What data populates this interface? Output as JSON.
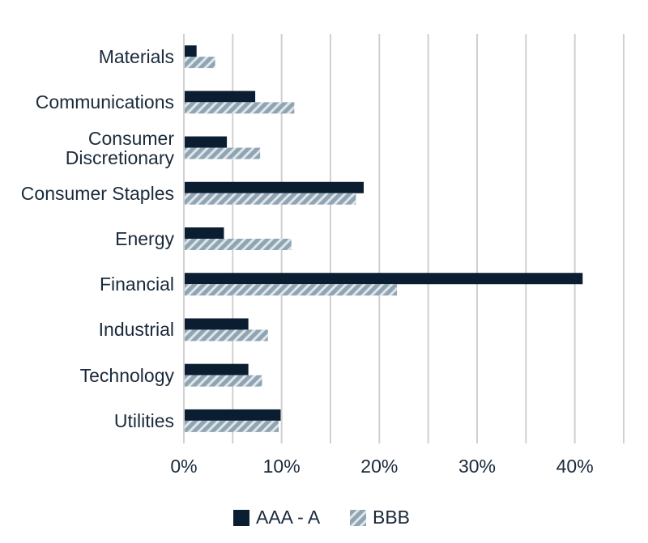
{
  "chart_data": {
    "type": "hbar",
    "categories": [
      "Materials",
      "Communications",
      "Consumer Discretionary",
      "Consumer Staples",
      "Energy",
      "Financial",
      "Industrial",
      "Technology",
      "Utilities"
    ],
    "series": [
      {
        "name": "AAA - A",
        "color": "#0b1d31",
        "values": [
          1.3,
          7.3,
          4.4,
          18.4,
          4.1,
          40.8,
          6.6,
          6.6,
          9.9
        ]
      },
      {
        "name": "BBB",
        "color": "#8fa5b3",
        "hatch": true,
        "values": [
          3.2,
          11.3,
          7.8,
          17.6,
          11.0,
          21.8,
          8.6,
          8.0,
          9.7
        ]
      }
    ],
    "xlim": [
      0,
      45
    ],
    "xticks": [
      {
        "value": 0,
        "label": "0%"
      },
      {
        "value": 10,
        "label": "10%"
      },
      {
        "value": 20,
        "label": "20%"
      },
      {
        "value": 30,
        "label": "30%"
      },
      {
        "value": 40,
        "label": "40%"
      }
    ],
    "minor_xticks": [
      5,
      15,
      25,
      35,
      45
    ],
    "grid": true,
    "legend": "bottom"
  }
}
